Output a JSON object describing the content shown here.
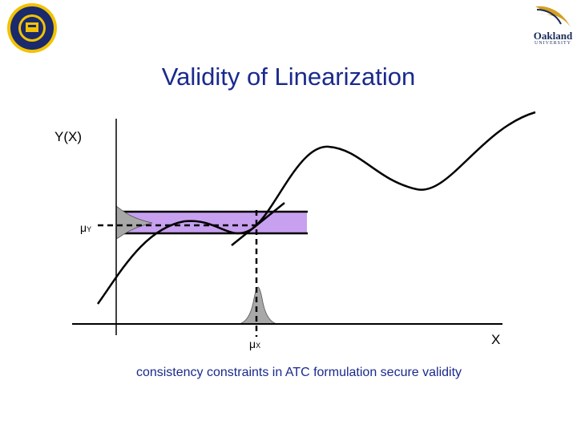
{
  "title": "Validity of Linearization",
  "axis": {
    "y_label": "Y(X)",
    "x_label": "X"
  },
  "markers": {
    "mu_y": {
      "symbol": "μ",
      "sub": "Y"
    },
    "mu_x": {
      "symbol": "μ",
      "sub": "X"
    }
  },
  "caption": "consistency constraints in ATC formulation secure validity",
  "logos": {
    "right_word": "Oakland",
    "right_sub": "UNIVERSITY"
  },
  "colors": {
    "title": "#1a2a8c",
    "band": "#c8a0f0",
    "distribution": "#a8a8a8",
    "seal": "#f2c200",
    "seal_dark": "#1a2a6c"
  }
}
